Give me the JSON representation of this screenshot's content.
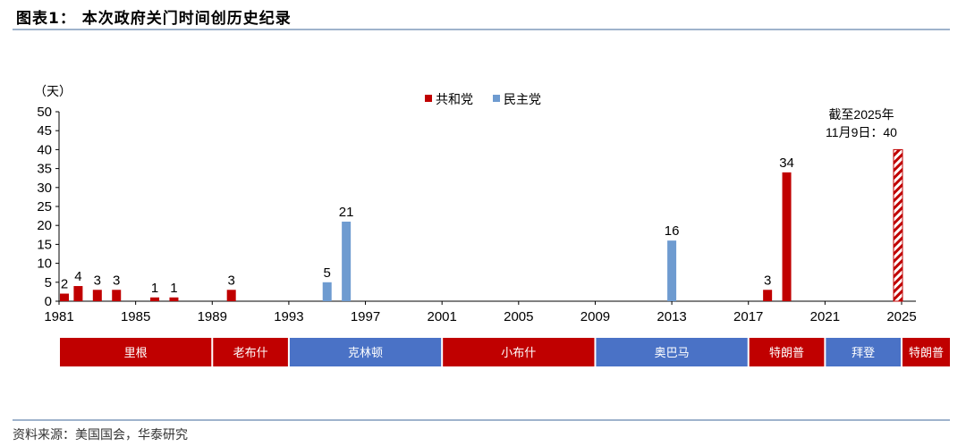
{
  "header": {
    "title": "图表1： 本次政府关门时间创历史纪录"
  },
  "footer": {
    "source": "资料来源：美国国会，华泰研究"
  },
  "colors": {
    "republican": "#c00000",
    "democrat": "#6e9bd0",
    "band_democrat": "#4a72c6",
    "rule": "#9fb3cc"
  },
  "chart_data": {
    "type": "bar",
    "y_unit_label": "（天）",
    "ylim": [
      0,
      50
    ],
    "yticks": [
      0,
      5,
      10,
      15,
      20,
      25,
      30,
      35,
      40,
      45,
      50
    ],
    "xlim": [
      1981,
      2025
    ],
    "xticks": [
      "1981",
      "1985",
      "1989",
      "1993",
      "1997",
      "2001",
      "2005",
      "2009",
      "2013",
      "2017",
      "2021",
      "2025"
    ],
    "legend": [
      {
        "name": "共和党",
        "color": "#c00000"
      },
      {
        "name": "民主党",
        "color": "#6e9bd0"
      }
    ],
    "legend_position": "top-center",
    "grid": false,
    "bars": [
      {
        "x": 1981,
        "value": 2,
        "party": "共和党"
      },
      {
        "x": 1982,
        "value": 4,
        "party": "共和党"
      },
      {
        "x": 1983,
        "value": 3,
        "party": "共和党"
      },
      {
        "x": 1984,
        "value": 3,
        "party": "共和党"
      },
      {
        "x": 1986,
        "value": 1,
        "party": "共和党"
      },
      {
        "x": 1987,
        "value": 1,
        "party": "共和党"
      },
      {
        "x": 1990,
        "value": 3,
        "party": "共和党"
      },
      {
        "x": 1995,
        "value": 5,
        "party": "民主党"
      },
      {
        "x": 1996,
        "value": 21,
        "party": "民主党"
      },
      {
        "x": 2013,
        "value": 16,
        "party": "民主党"
      },
      {
        "x": 2018,
        "value": 3,
        "party": "共和党"
      },
      {
        "x": 2019,
        "value": 34,
        "party": "共和党"
      },
      {
        "x": 2025,
        "value": 40,
        "party": "共和党",
        "hatched": true
      }
    ],
    "annotation": {
      "lines": [
        "截至2025年",
        "11月9日：40"
      ],
      "x": 2025
    },
    "administrations": [
      {
        "name": "里根",
        "start": 1981,
        "end": 1989,
        "party": "共和党"
      },
      {
        "name": "老布什",
        "start": 1989,
        "end": 1993,
        "party": "共和党"
      },
      {
        "name": "克林顿",
        "start": 1993,
        "end": 2001,
        "party": "民主党"
      },
      {
        "name": "小布什",
        "start": 2001,
        "end": 2009,
        "party": "共和党"
      },
      {
        "name": "奥巴马",
        "start": 2009,
        "end": 2017,
        "party": "民主党"
      },
      {
        "name": "特朗普",
        "start": 2017,
        "end": 2021,
        "party": "共和党"
      },
      {
        "name": "拜登",
        "start": 2021,
        "end": 2025,
        "party": "民主党"
      },
      {
        "name": "特朗普",
        "start": 2025,
        "end": 2026,
        "party": "共和党"
      }
    ]
  }
}
